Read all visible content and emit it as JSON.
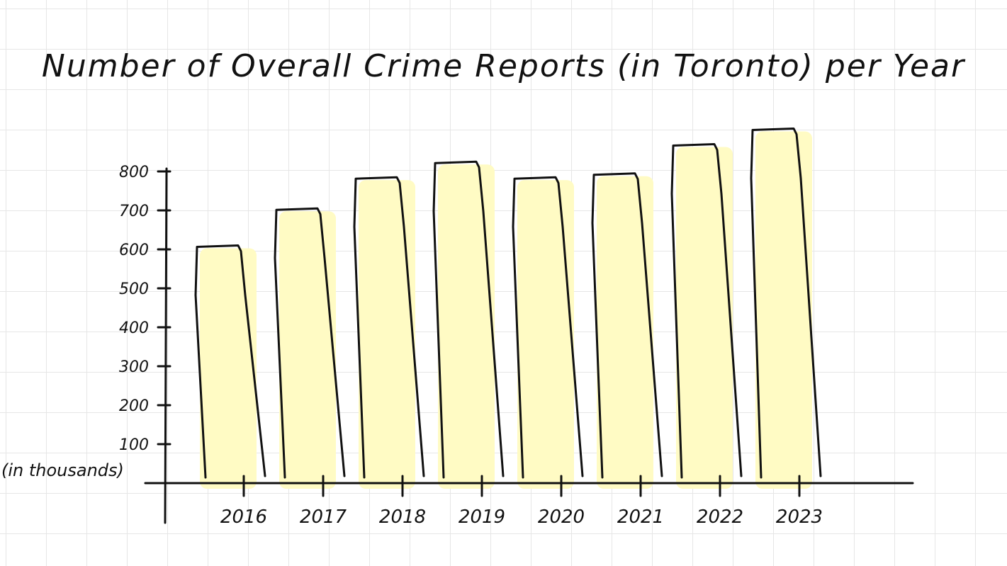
{
  "chart_data": {
    "type": "bar",
    "title": "Number of Overall Crime Reports (in Toronto) per Year",
    "ylabel": "(in thousands)",
    "xlabel": "",
    "categories": [
      "2016",
      "2017",
      "2018",
      "2019",
      "2020",
      "2021",
      "2022",
      "2023"
    ],
    "values": [
      610,
      705,
      785,
      825,
      785,
      795,
      870,
      910
    ],
    "yticks": [
      "100",
      "200",
      "300",
      "400",
      "500",
      "600",
      "700",
      "800"
    ],
    "ylim": [
      0,
      900
    ],
    "grid": false,
    "colors": {
      "bar_fill": "#fffbc4",
      "outline": "#111111"
    }
  }
}
